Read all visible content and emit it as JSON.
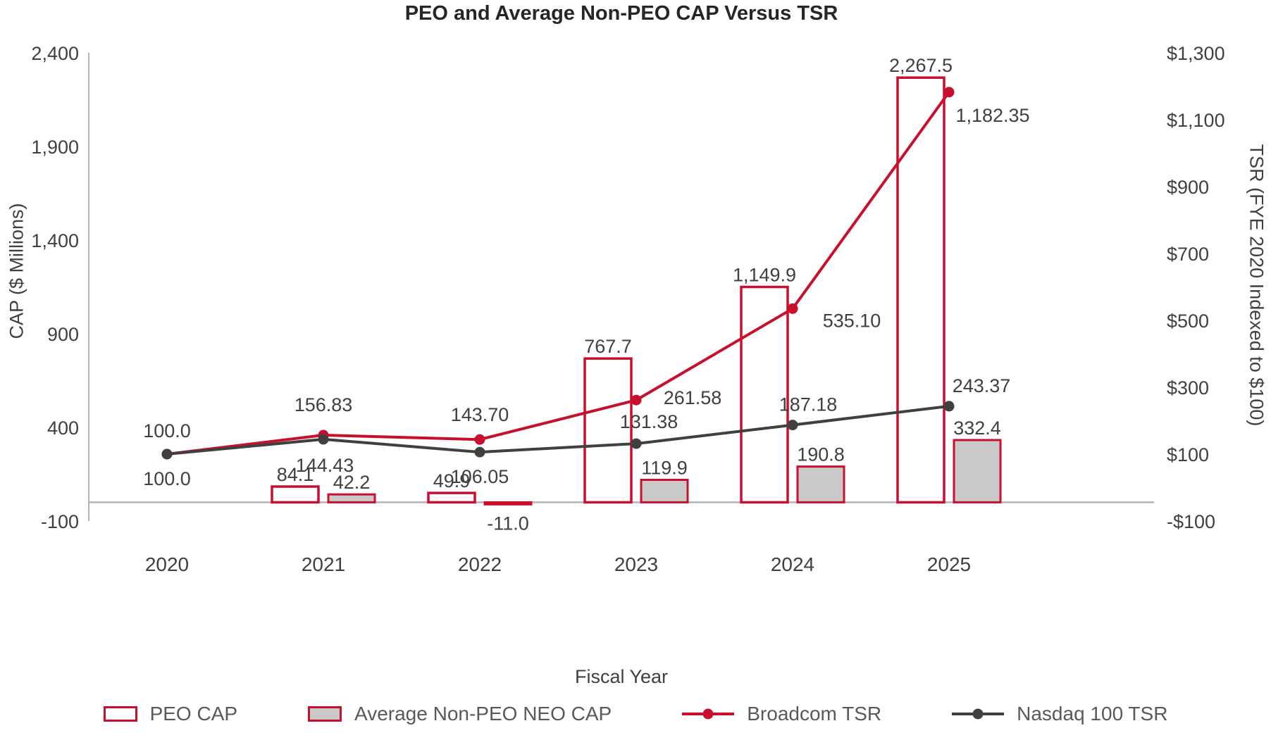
{
  "chart": {
    "title": "PEO and Average Non-PEO CAP Versus TSR",
    "x_axis_title": "Fiscal Year",
    "left_axis_title": "CAP ($ Millions)",
    "right_axis_title": "TSR (FYE 2020 Indexed to $100)"
  },
  "chart_data": {
    "type": "combo-bar-line",
    "categories": [
      "2020",
      "2021",
      "2022",
      "2023",
      "2024",
      "2025"
    ],
    "bar_series": [
      {
        "id": "peo-cap",
        "name": "PEO CAP",
        "axis": "left",
        "style": "outline",
        "values": [
          null,
          84.1,
          49.9,
          767.7,
          1149.9,
          2267.5
        ],
        "labels": [
          "",
          "84.1",
          "49.9",
          "767.7",
          "1,149.9",
          "2,267.5"
        ]
      },
      {
        "id": "non-peo-neo-cap",
        "name": "Average Non-PEO NEO CAP",
        "axis": "left",
        "style": "filled",
        "values": [
          null,
          42.2,
          -11.0,
          119.9,
          190.8,
          332.4
        ],
        "labels": [
          "",
          "42.2",
          "-11.0",
          "119.9",
          "190.8",
          "332.4"
        ]
      }
    ],
    "line_series": [
      {
        "id": "broadcom-tsr",
        "name": "Broadcom TSR",
        "axis": "right",
        "color_key": "broadcom_red",
        "values": [
          100.0,
          156.83,
          143.7,
          261.58,
          535.1,
          1182.35
        ],
        "labels": [
          "100.0",
          "156.83",
          "143.70",
          "261.58",
          "535.10",
          "1,182.35"
        ]
      },
      {
        "id": "nasdaq-100-tsr",
        "name": "Nasdaq 100 TSR",
        "axis": "right",
        "color_key": "dark_gray",
        "values": [
          100.0,
          144.43,
          106.05,
          131.38,
          187.18,
          243.37
        ],
        "labels": [
          "100.0",
          "144.43",
          "106.05",
          "131.38",
          "187.18",
          "243.37"
        ]
      }
    ],
    "left_axis": {
      "min": -100,
      "max": 2400,
      "step": 500,
      "tick_labels": [
        "-100",
        "400",
        "900",
        "1,400",
        "1,900",
        "2,400"
      ]
    },
    "right_axis": {
      "min": -100,
      "max": 1300,
      "step": 200,
      "tick_labels": [
        "-$100",
        "$100",
        "$300",
        "$500",
        "$700",
        "$900",
        "$1,100",
        "$1,300"
      ]
    },
    "colors": {
      "broadcom_red": "#C8102E",
      "dark_gray": "#404040",
      "bar_gray_fill": "#C9C9C9",
      "axis_line_gray": "#B3B3B3",
      "text": "#404040"
    },
    "grid": false,
    "legend_position": "bottom"
  },
  "legend": {
    "items": [
      {
        "label": "PEO CAP",
        "swatch": "outline-box"
      },
      {
        "label": "Average Non-PEO NEO CAP",
        "swatch": "filled-box"
      },
      {
        "label": "Broadcom TSR",
        "swatch": "line-dot-red"
      },
      {
        "label": "Nasdaq 100 TSR",
        "swatch": "line-dot-dark"
      }
    ]
  }
}
